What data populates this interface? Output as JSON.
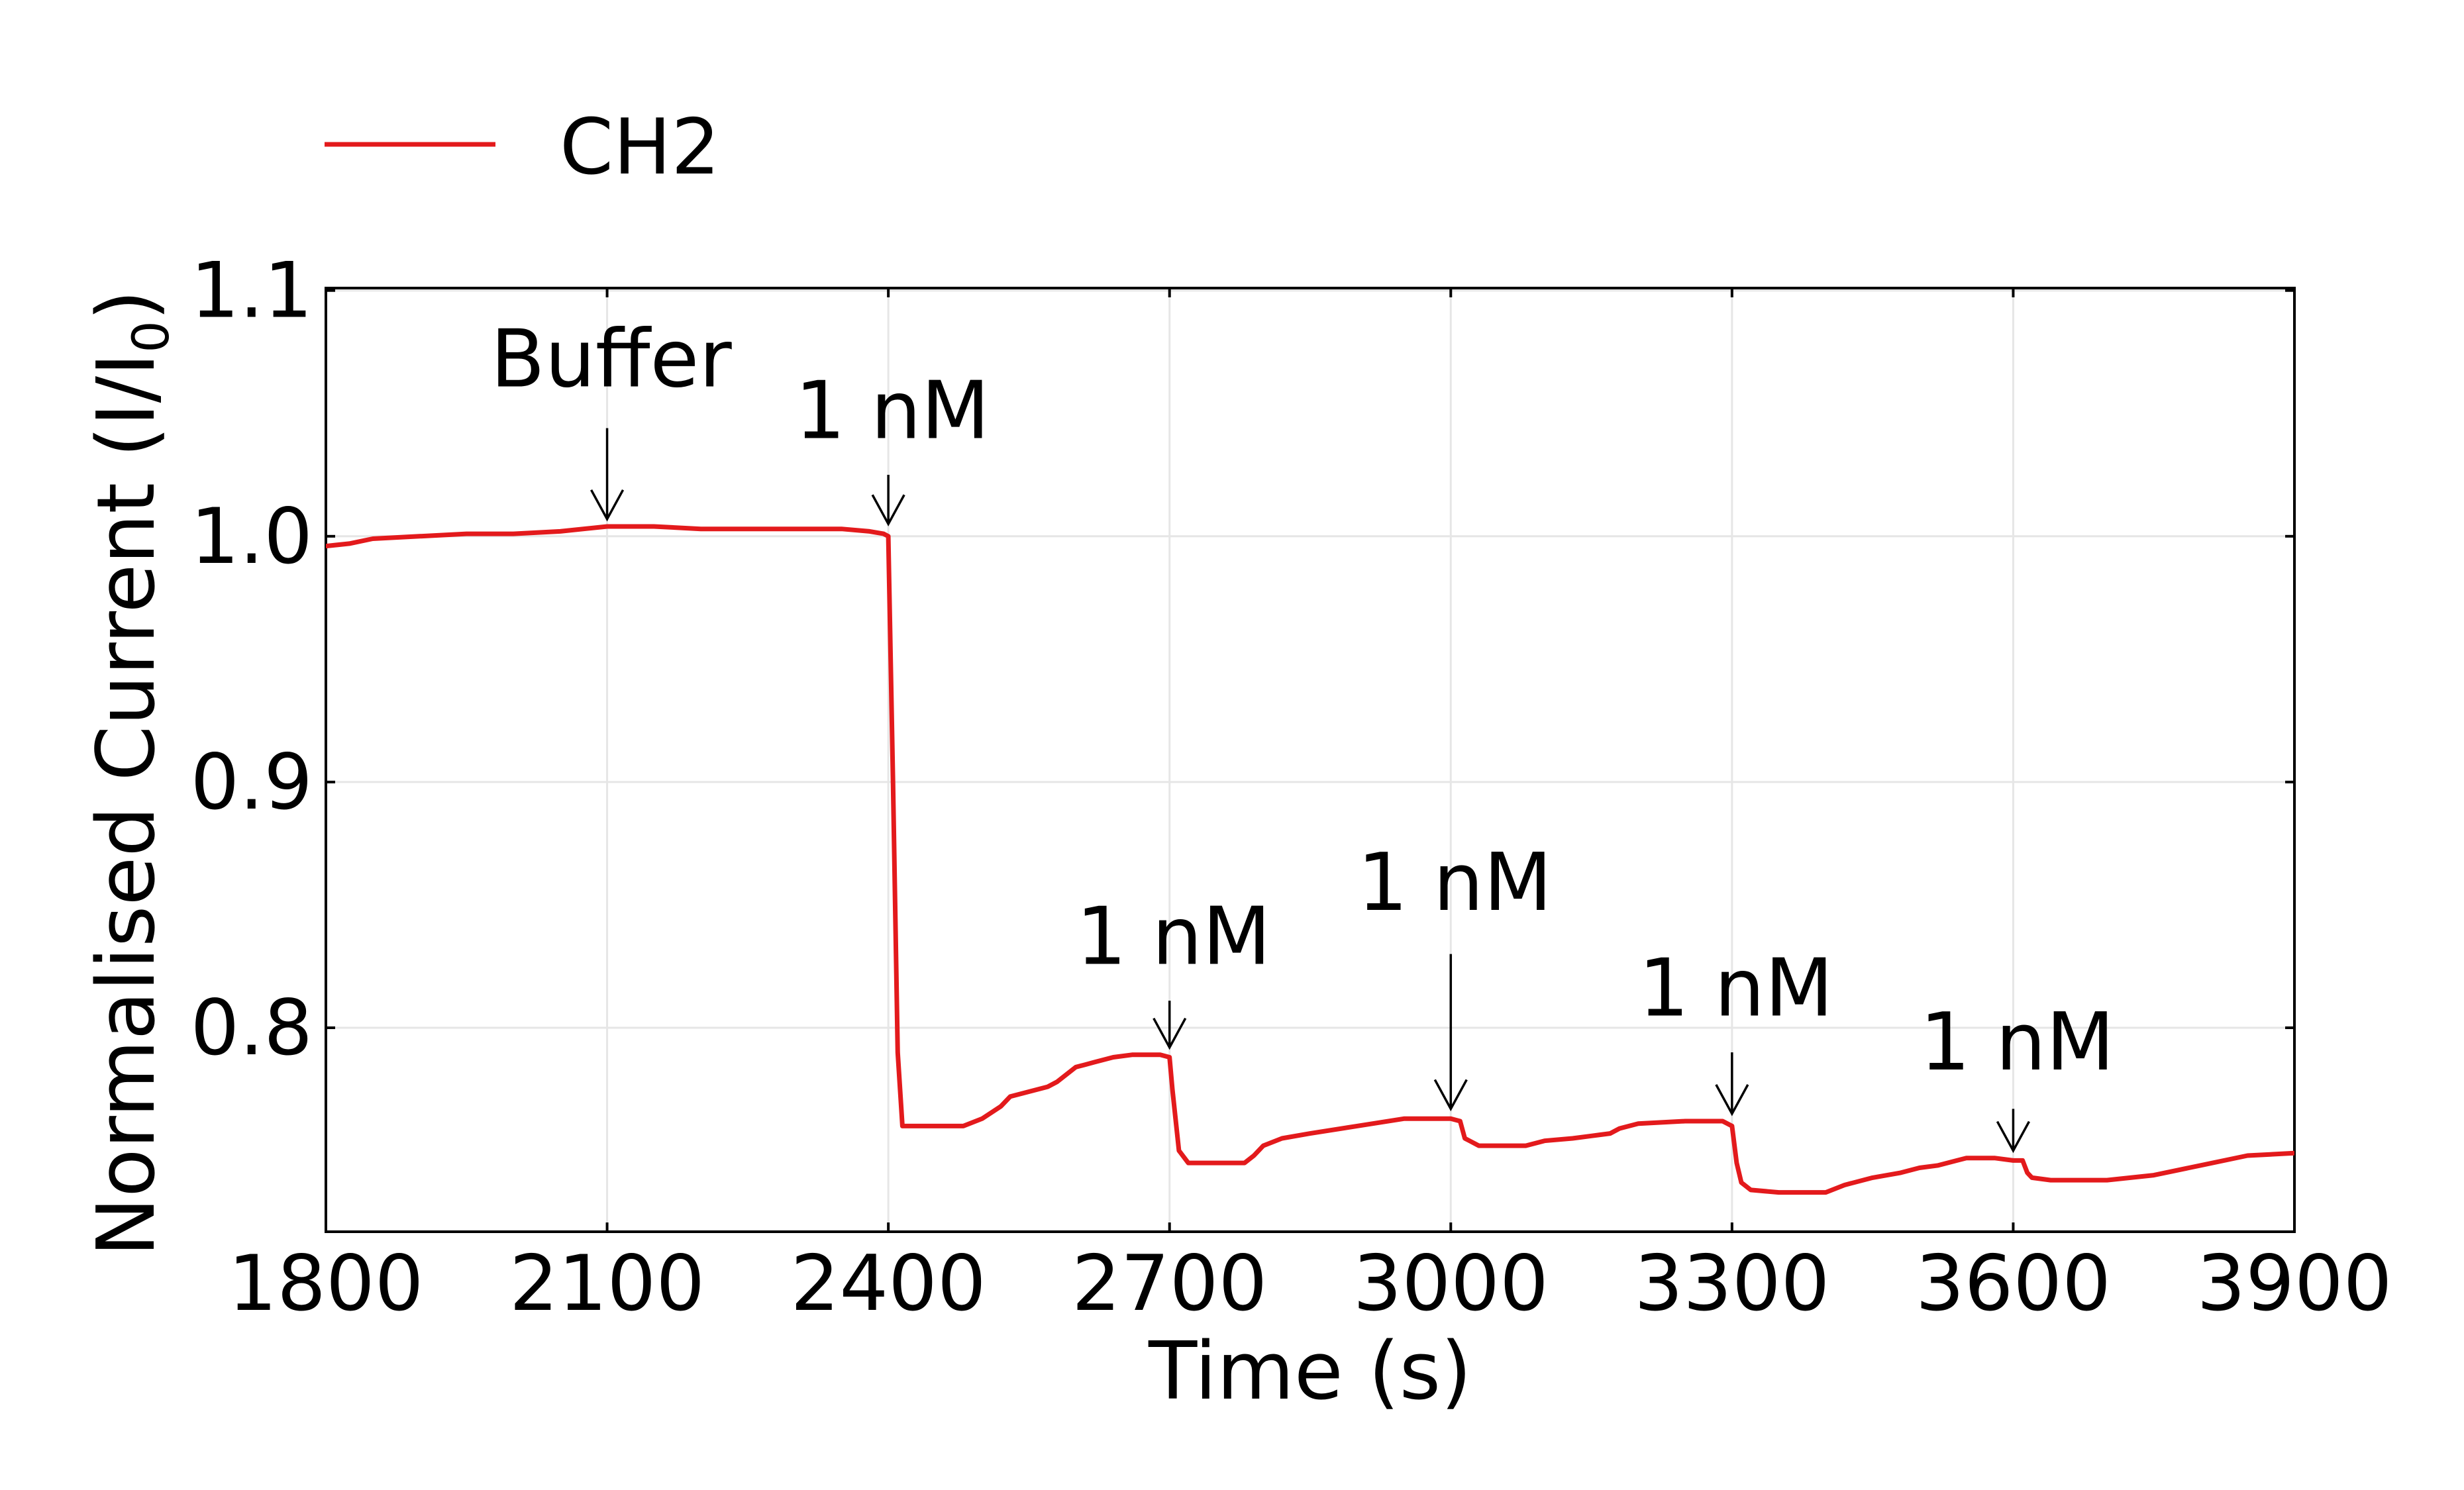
{
  "chart_data": {
    "type": "line",
    "title": "",
    "xlabel": "Time (s)",
    "ylabel": {
      "main": "Normalised Current (I/I",
      "sub": "0",
      "close": ")"
    },
    "xlim": [
      1800,
      3900
    ],
    "ylim": [
      0.717,
      1.101
    ],
    "x_ticks": [
      1800,
      2100,
      2400,
      2700,
      3000,
      3300,
      3600,
      3900
    ],
    "x_tick_labels": [
      "1800",
      "2100",
      "2400",
      "2700",
      "3000",
      "3300",
      "3600",
      "3900"
    ],
    "y_ticks": [
      0.8,
      0.9,
      1.0,
      1.1
    ],
    "y_tick_labels": [
      "0.8",
      "0.9",
      "1.0",
      "1.1"
    ],
    "grid": true,
    "legend": {
      "placement": "top-left",
      "entries": [
        {
          "label": "CH2",
          "color": "#e31a1c"
        }
      ]
    },
    "series": [
      {
        "name": "CH2",
        "color": "#e31a1c",
        "x": [
          1800,
          1825,
          1850,
          1900,
          1950,
          2000,
          2050,
          2100,
          2150,
          2200,
          2250,
          2300,
          2350,
          2380,
          2395,
          2400,
          2405,
          2410,
          2415,
          2440,
          2470,
          2480,
          2500,
          2520,
          2530,
          2550,
          2570,
          2580,
          2600,
          2610,
          2620,
          2640,
          2660,
          2690,
          2700,
          2703,
          2710,
          2720,
          2760,
          2780,
          2790,
          2800,
          2820,
          2850,
          2900,
          2950,
          3000,
          3010,
          3015,
          3020,
          3030,
          3050,
          3070,
          3080,
          3100,
          3130,
          3150,
          3170,
          3180,
          3200,
          3250,
          3290,
          3300,
          3305,
          3310,
          3320,
          3350,
          3380,
          3400,
          3420,
          3450,
          3480,
          3500,
          3520,
          3540,
          3550,
          3580,
          3600,
          3610,
          3615,
          3620,
          3640,
          3680,
          3700,
          3750,
          3800,
          3850,
          3900
        ],
        "y": [
          0.996,
          0.997,
          0.999,
          1.0,
          1.001,
          1.001,
          1.002,
          1.004,
          1.004,
          1.003,
          1.003,
          1.003,
          1.003,
          1.002,
          1.001,
          1.0,
          0.9,
          0.79,
          0.76,
          0.76,
          0.76,
          0.76,
          0.763,
          0.768,
          0.772,
          0.774,
          0.776,
          0.778,
          0.784,
          0.785,
          0.786,
          0.788,
          0.789,
          0.789,
          0.788,
          0.775,
          0.75,
          0.745,
          0.745,
          0.745,
          0.748,
          0.752,
          0.755,
          0.757,
          0.76,
          0.763,
          0.763,
          0.762,
          0.755,
          0.754,
          0.752,
          0.752,
          0.752,
          0.752,
          0.754,
          0.755,
          0.756,
          0.757,
          0.759,
          0.761,
          0.762,
          0.762,
          0.76,
          0.745,
          0.737,
          0.734,
          0.733,
          0.733,
          0.733,
          0.736,
          0.739,
          0.741,
          0.743,
          0.744,
          0.746,
          0.747,
          0.747,
          0.746,
          0.746,
          0.741,
          0.739,
          0.738,
          0.738,
          0.738,
          0.74,
          0.744,
          0.748,
          0.749
        ]
      }
    ],
    "annotations": [
      {
        "text": "Buffer",
        "x": 2100,
        "arrow_top": 1.044,
        "arrow_tip": 1.007,
        "label_y": 1.061
      },
      {
        "text": "1 nM",
        "x": 2400,
        "arrow_top": 1.025,
        "arrow_tip": 1.005,
        "label_y": 1.04
      },
      {
        "text": "1 nM",
        "x": 2700,
        "arrow_top": 0.811,
        "arrow_tip": 0.792,
        "label_y": 0.826
      },
      {
        "text": "1 nM",
        "x": 3000,
        "arrow_top": 0.83,
        "arrow_tip": 0.767,
        "label_y": 0.848
      },
      {
        "text": "1 nM",
        "x": 3300,
        "arrow_top": 0.79,
        "arrow_tip": 0.765,
        "label_y": 0.805
      },
      {
        "text": "1 nM",
        "x": 3600,
        "arrow_top": 0.767,
        "arrow_tip": 0.75,
        "label_y": 0.783
      }
    ]
  }
}
